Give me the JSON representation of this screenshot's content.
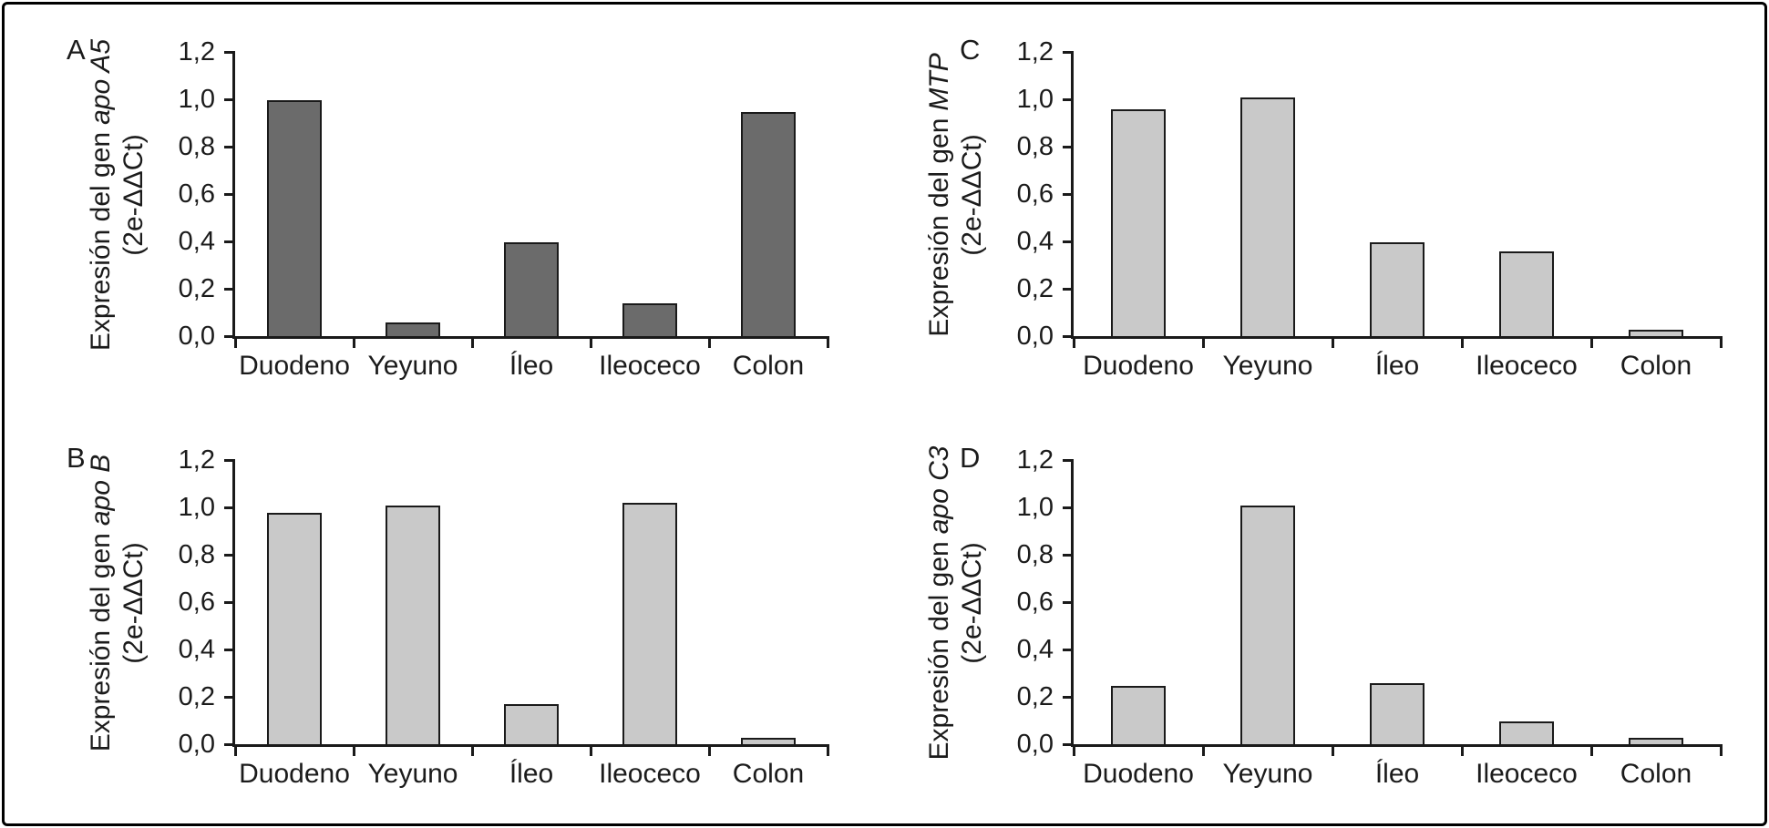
{
  "figure": {
    "background_color": "#ffffff",
    "frame_color": "#000000",
    "axis_color": "#1a1a1a",
    "text_color": "#1b1b1b"
  },
  "chart_data": [
    {
      "type": "bar",
      "panel_label": "A",
      "ylabel_prefix": "Expresión del gen",
      "gene": "apo A5",
      "ylabel_units": "(2e-ΔΔCt)",
      "categories": [
        "Duodeno",
        "Yeyuno",
        "Íleo",
        "Ileoceco",
        "Colon"
      ],
      "values": [
        0.99,
        0.05,
        0.39,
        0.13,
        0.94
      ],
      "ylim": [
        0,
        1.2
      ],
      "y_ticks": [
        "0,0",
        "0,2",
        "0,4",
        "0,6",
        "0,8",
        "1,0",
        "1,2"
      ],
      "y_tick_values": [
        0,
        0.2,
        0.4,
        0.6,
        0.8,
        1.0,
        1.2
      ],
      "bar_color": "#6b6b6b",
      "bar_border_color": "#1a1a1a",
      "grid": "off",
      "legend": "none"
    },
    {
      "type": "bar",
      "panel_label": "B",
      "ylabel_prefix": "Expresión del gen",
      "gene": "apo B",
      "ylabel_units": "(2e-ΔΔCt)",
      "categories": [
        "Duodeno",
        "Yeyuno",
        "Íleo",
        "Ileoceco",
        "Colon"
      ],
      "values": [
        0.97,
        1.0,
        0.16,
        1.01,
        0.02
      ],
      "ylim": [
        0,
        1.2
      ],
      "y_ticks": [
        "0,0",
        "0,2",
        "0,4",
        "0,6",
        "0,8",
        "1,0",
        "1,2"
      ],
      "y_tick_values": [
        0,
        0.2,
        0.4,
        0.6,
        0.8,
        1.0,
        1.2
      ],
      "bar_color": "#c9c9c9",
      "bar_border_color": "#1a1a1a",
      "grid": "off",
      "legend": "none"
    },
    {
      "type": "bar",
      "panel_label": "C",
      "ylabel_prefix": "Expresión del gen",
      "gene": "MTP",
      "ylabel_units": "(2e-ΔΔCt)",
      "categories": [
        "Duodeno",
        "Yeyuno",
        "Íleo",
        "Ileoceco",
        "Colon"
      ],
      "values": [
        0.95,
        1.0,
        0.39,
        0.35,
        0.02
      ],
      "ylim": [
        0,
        1.2
      ],
      "y_ticks": [
        "0,0",
        "0,2",
        "0,4",
        "0,6",
        "0,8",
        "1,0",
        "1,2"
      ],
      "y_tick_values": [
        0,
        0.2,
        0.4,
        0.6,
        0.8,
        1.0,
        1.2
      ],
      "bar_color": "#c9c9c9",
      "bar_border_color": "#1a1a1a",
      "grid": "off",
      "legend": "none"
    },
    {
      "type": "bar",
      "panel_label": "D",
      "ylabel_prefix": "Expresión del gen",
      "gene": "apo C3",
      "ylabel_units": "(2e-ΔΔCt)",
      "categories": [
        "Duodeno",
        "Yeyuno",
        "Íleo",
        "Ileoceco",
        "Colon"
      ],
      "values": [
        0.24,
        1.0,
        0.25,
        0.09,
        0.02
      ],
      "ylim": [
        0,
        1.2
      ],
      "y_ticks": [
        "0,0",
        "0,2",
        "0,4",
        "0,6",
        "0,8",
        "1,0",
        "1,2"
      ],
      "y_tick_values": [
        0,
        0.2,
        0.4,
        0.6,
        0.8,
        1.0,
        1.2
      ],
      "bar_color": "#c9c9c9",
      "bar_border_color": "#1a1a1a",
      "grid": "off",
      "legend": "none"
    }
  ]
}
